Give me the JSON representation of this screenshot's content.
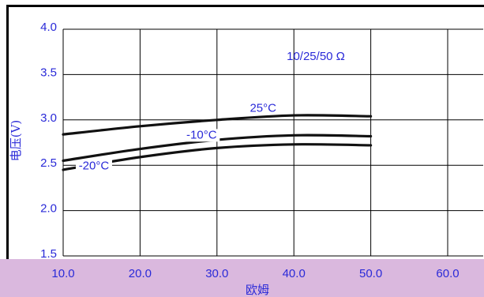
{
  "chart_data": {
    "type": "line",
    "title": "",
    "annotation": "10/25/50 Ω",
    "xlabel": "欧姆",
    "ylabel": "电压(V)",
    "xlim": [
      10,
      60
    ],
    "ylim": [
      1.5,
      4.0
    ],
    "x_ticks": [
      "10.0",
      "20.0",
      "30.0",
      "40.0",
      "50.0",
      "60.0"
    ],
    "y_ticks": [
      "1.5",
      "2.0",
      "2.5",
      "3.0",
      "3.5",
      "4.0"
    ],
    "grid": true,
    "series": [
      {
        "name": "25°C",
        "x": [
          10,
          20,
          30,
          40,
          50
        ],
        "y": [
          2.84,
          2.93,
          3.0,
          3.05,
          3.04
        ]
      },
      {
        "name": "-10°C",
        "x": [
          10,
          20,
          30,
          40,
          50
        ],
        "y": [
          2.55,
          2.68,
          2.78,
          2.83,
          2.82
        ]
      },
      {
        "name": "-20°C",
        "x": [
          10,
          20,
          30,
          40,
          50
        ],
        "y": [
          2.45,
          2.59,
          2.69,
          2.73,
          2.72
        ]
      }
    ]
  }
}
